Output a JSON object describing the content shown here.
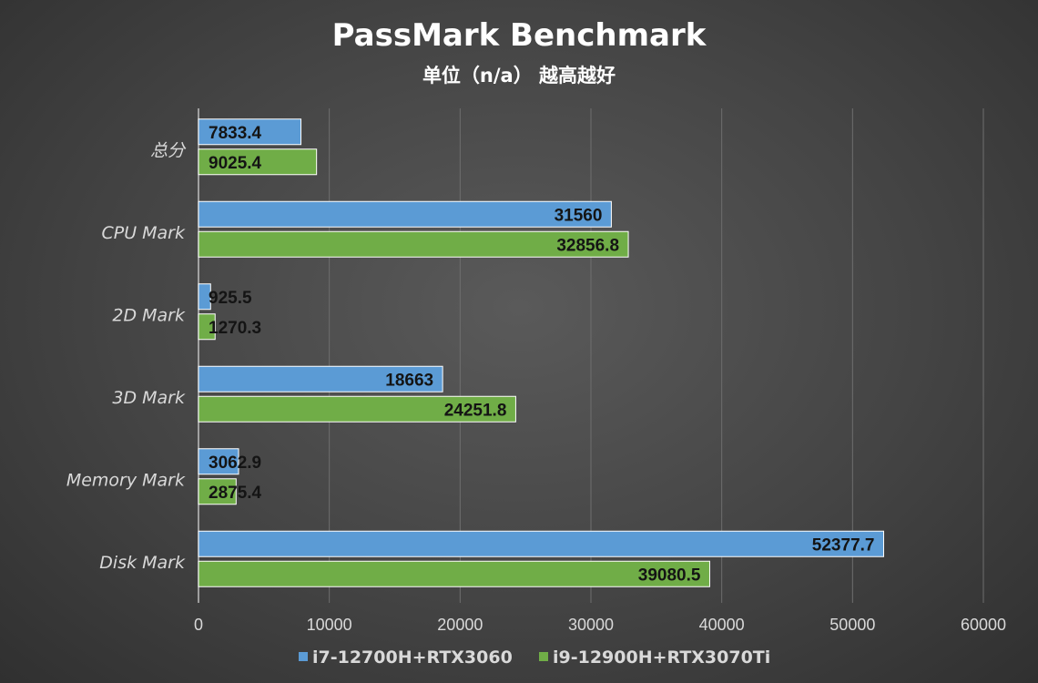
{
  "chart_data": {
    "type": "bar",
    "orientation": "horizontal",
    "title": "PassMark Benchmark",
    "subtitle": "单位（n/a） 越高越好",
    "categories": [
      "总分",
      "CPU Mark",
      "2D Mark",
      "3D Mark",
      "Memory Mark",
      "Disk Mark"
    ],
    "series": [
      {
        "name": "i7-12700H+RTX3060",
        "color": "#5b9bd5",
        "values": [
          7833.4,
          31560,
          925.5,
          18663,
          3062.9,
          52377.7
        ],
        "labels": [
          "7833.4",
          "31560",
          "925.5",
          "18663",
          "3062.9",
          "52377.7"
        ]
      },
      {
        "name": "i9-12900H+RTX3070Ti",
        "color": "#70ad47",
        "values": [
          9025.4,
          32856.8,
          1270.3,
          24251.8,
          2875.4,
          39080.5
        ],
        "labels": [
          "9025.4",
          "32856.8",
          "1270.3",
          "24251.8",
          "2875.4",
          "39080.5"
        ]
      }
    ],
    "xlim": [
      0,
      60000
    ],
    "xticks": [
      "0",
      "10000",
      "20000",
      "30000",
      "40000",
      "50000",
      "60000"
    ],
    "grid": true,
    "legend": "bottom"
  }
}
